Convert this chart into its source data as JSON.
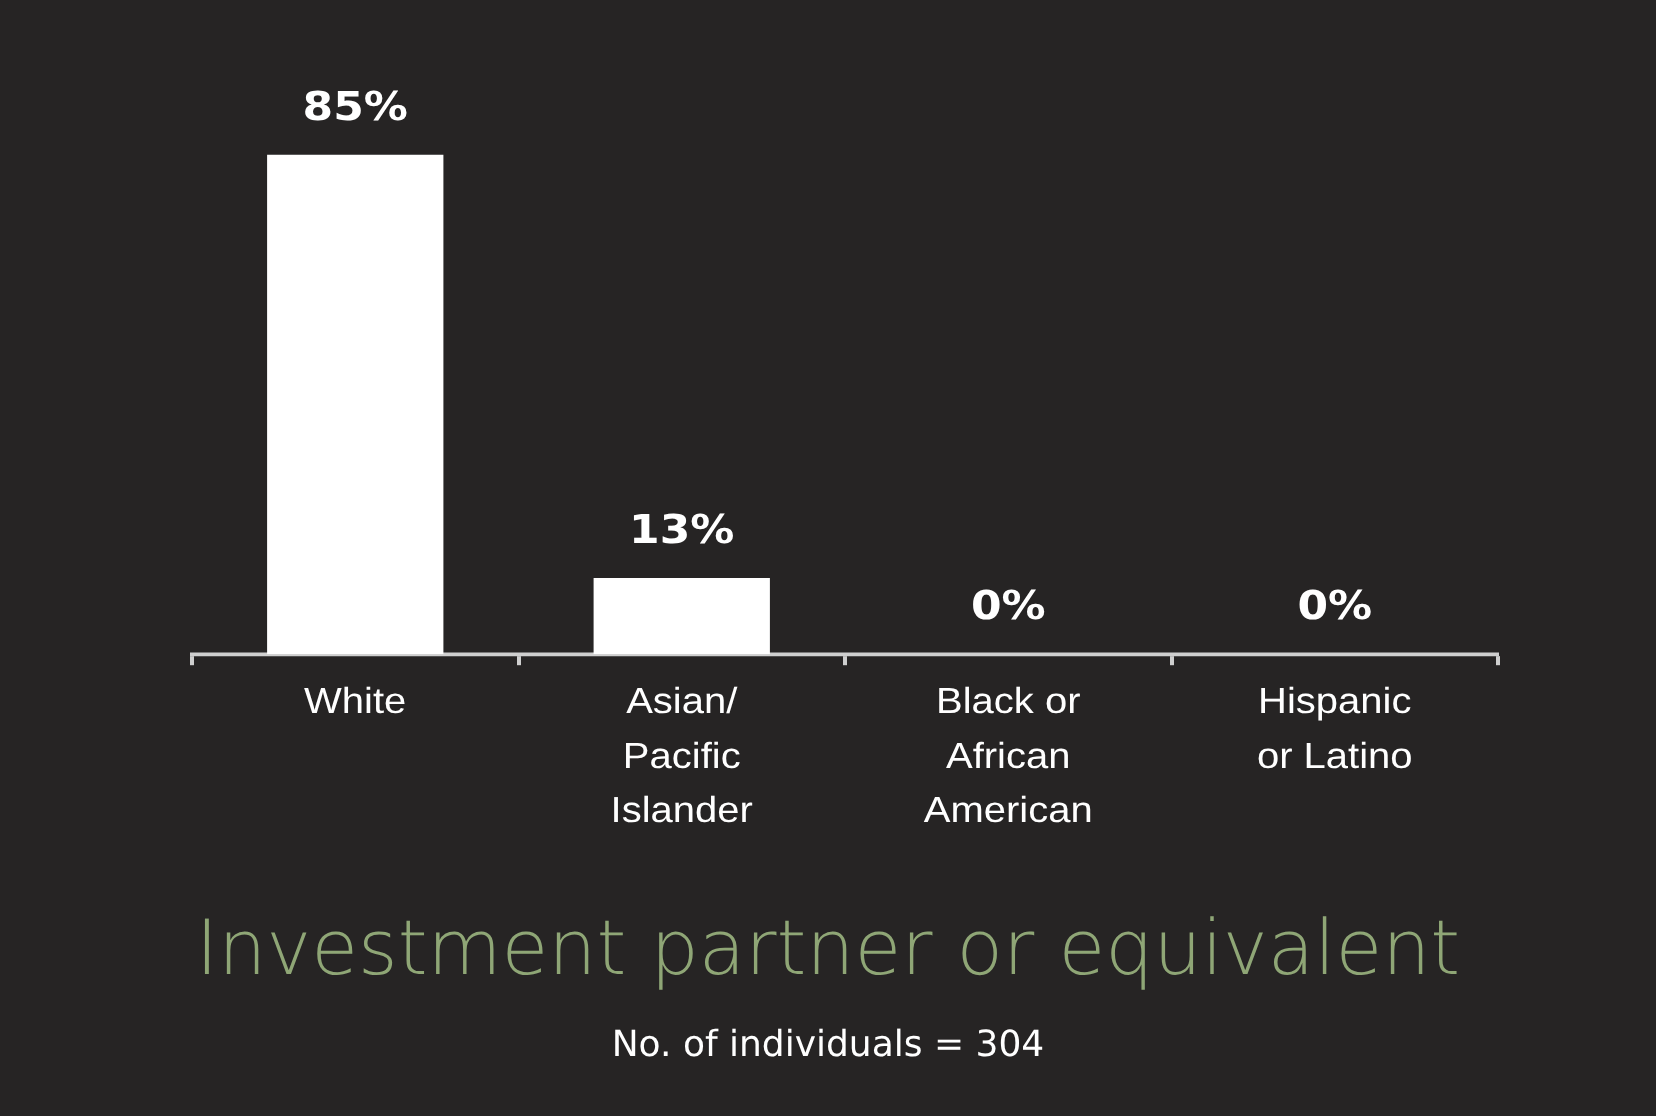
{
  "chart_data": {
    "type": "bar",
    "title": "Investment partner or equivalent",
    "subtitle": "No. of individuals = 304",
    "categories": [
      "White",
      "Asian/ Pacific Islander",
      "Black or African American",
      "Hispanic or Latino"
    ],
    "values": [
      85,
      13,
      0,
      0
    ],
    "value_labels": [
      "85%",
      "13%",
      "0%",
      "0%"
    ],
    "color": "#ffffff",
    "legend": false,
    "tick_labels": "x"
  }
}
